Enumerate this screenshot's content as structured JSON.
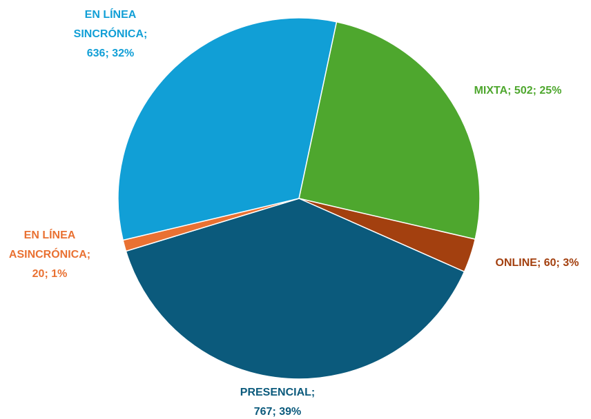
{
  "chart_data": {
    "type": "pie",
    "values": [
      502,
      60,
      767,
      20,
      636
    ],
    "colors": [
      "#4ea72e",
      "#a3400f",
      "#0b5a7c",
      "#e97132",
      "#119fd6"
    ],
    "labels": [
      [
        "MIXTA; 502; 25%"
      ],
      [
        "ONLINE; 60; 3%"
      ],
      [
        "PRESENCIAL;",
        "767; 39%"
      ],
      [
        "EN LÍNEA",
        "ASINCRÓNICA;",
        "20; 1%"
      ],
      [
        "EN LÍNEA",
        "SINCRÓNICA;",
        "636; 32%"
      ]
    ]
  }
}
